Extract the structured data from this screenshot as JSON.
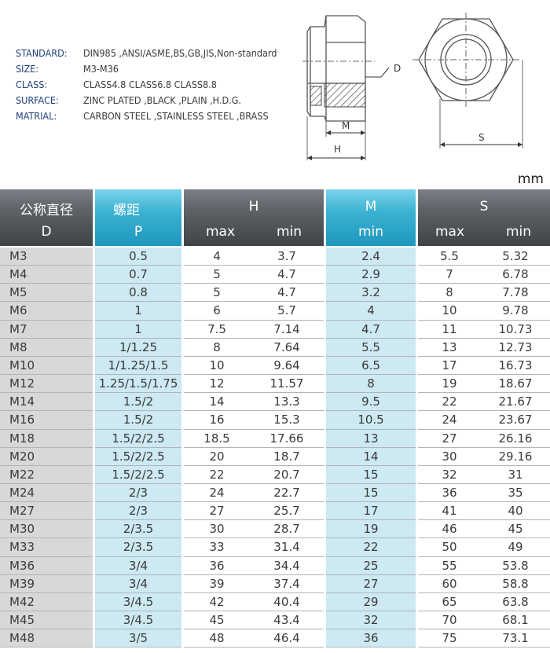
{
  "specs": [
    {
      "label": "STANDARD:",
      "value": "DIN985 ,ANSI/ASME,BS,GB,JIS,Non-standard"
    },
    {
      "label": "SIZE:",
      "value": "M3-M36"
    },
    {
      "label": "CLASS:",
      "value": "CLASS4.8 CLASS6.8 CLASS8.8"
    },
    {
      "label": "SURFACE:",
      "value": "ZINC PLATED ,BLACK ,PLAIN ,H.D.G."
    },
    {
      "label": "MATRIAL:",
      "value": "CARBON STEEL ,STAINLESS STEEL ,BRASS"
    }
  ],
  "drawing": {
    "label_d": "D",
    "label_m": "M",
    "label_h": "H",
    "label_s": "S"
  },
  "unit": "mm",
  "header": {
    "d_line1": "公称直径",
    "d_line2": "D",
    "p_line1": "螺距",
    "p_line2": "P",
    "h_title": "H",
    "h_max": "max",
    "h_min": "min",
    "m_title": "M",
    "m_min": "min",
    "s_title": "S",
    "s_max": "max",
    "s_min": "min"
  },
  "colors": {
    "dark_header": "#5e6368",
    "blue_header": "#2aa6cb",
    "blue_column": "#cde9f2",
    "grey_column": "#d8d8d8",
    "spec_label": "#1f3f7a"
  },
  "rows": [
    [
      "M3",
      "0.5",
      "4",
      "3.7",
      "2.4",
      "5.5",
      "5.32"
    ],
    [
      "M4",
      "0.7",
      "5",
      "4.7",
      "2.9",
      "7",
      "6.78"
    ],
    [
      "M5",
      "0.8",
      "5",
      "4.7",
      "3.2",
      "8",
      "7.78"
    ],
    [
      "M6",
      "1",
      "6",
      "5.7",
      "4",
      "10",
      "9.78"
    ],
    [
      "M7",
      "1",
      "7.5",
      "7.14",
      "4.7",
      "11",
      "10.73"
    ],
    [
      "M8",
      "1/1.25",
      "8",
      "7.64",
      "5.5",
      "13",
      "12.73"
    ],
    [
      "M10",
      "1/1.25/1.5",
      "10",
      "9.64",
      "6.5",
      "17",
      "16.73"
    ],
    [
      "M12",
      "1.25/1.5/1.75",
      "12",
      "11.57",
      "8",
      "19",
      "18.67"
    ],
    [
      "M14",
      "1.5/2",
      "14",
      "13.3",
      "9.5",
      "22",
      "21.67"
    ],
    [
      "M16",
      "1.5/2",
      "16",
      "15.3",
      "10.5",
      "24",
      "23.67"
    ],
    [
      "M18",
      "1.5/2/2.5",
      "18.5",
      "17.66",
      "13",
      "27",
      "26.16"
    ],
    [
      "M20",
      "1.5/2/2.5",
      "20",
      "18.7",
      "14",
      "30",
      "29.16"
    ],
    [
      "M22",
      "1.5/2/2.5",
      "22",
      "20.7",
      "15",
      "32",
      "31"
    ],
    [
      "M24",
      "2/3",
      "24",
      "22.7",
      "15",
      "36",
      "35"
    ],
    [
      "M27",
      "2/3",
      "27",
      "25.7",
      "17",
      "41",
      "40"
    ],
    [
      "M30",
      "2/3.5",
      "30",
      "28.7",
      "19",
      "46",
      "45"
    ],
    [
      "M33",
      "2/3.5",
      "33",
      "31.4",
      "22",
      "50",
      "49"
    ],
    [
      "M36",
      "3/4",
      "36",
      "34.4",
      "25",
      "55",
      "53.8"
    ],
    [
      "M39",
      "3/4",
      "39",
      "37.4",
      "27",
      "60",
      "58.8"
    ],
    [
      "M42",
      "3/4.5",
      "42",
      "40.4",
      "29",
      "65",
      "63.8"
    ],
    [
      "M45",
      "3/4.5",
      "45",
      "43.4",
      "32",
      "70",
      "68.1"
    ],
    [
      "M48",
      "3/5",
      "48",
      "46.4",
      "36",
      "75",
      "73.1"
    ]
  ]
}
